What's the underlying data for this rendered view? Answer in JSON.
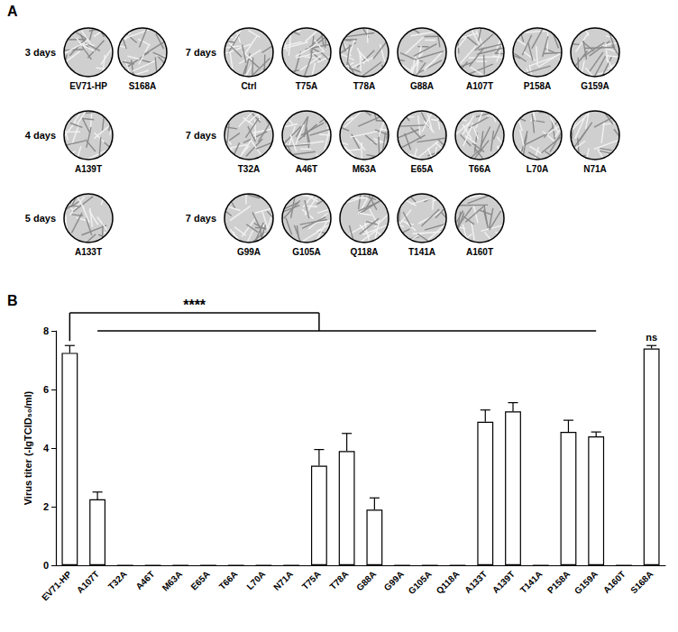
{
  "panel_labels": [
    "A",
    "B"
  ],
  "panel_a": {
    "left": [
      {
        "time": "3 days",
        "wells": [
          "EV71-HP",
          "S168A"
        ]
      },
      {
        "time": "4 days",
        "wells": [
          "A139T"
        ]
      },
      {
        "time": "5 days",
        "wells": [
          "A133T"
        ]
      }
    ],
    "right": [
      {
        "time": "7 days",
        "wells": [
          "Ctrl",
          "T75A",
          "T78A",
          "G88A",
          "A107T",
          "P158A",
          "G159A"
        ]
      },
      {
        "time": "7 days",
        "wells": [
          "T32A",
          "A46T",
          "M63A",
          "E65A",
          "T66A",
          "L70A",
          "N71A"
        ]
      },
      {
        "time": "7 days",
        "wells": [
          "G99A",
          "G105A",
          "Q118A",
          "T141A",
          "A160T"
        ]
      }
    ]
  },
  "chart_data": {
    "type": "bar",
    "y_label": "Virus titer (-lgTCID₅₀/ml)",
    "categories": [
      "EV71-HP",
      "A107T",
      "T32A",
      "A46T",
      "M63A",
      "E65A",
      "T66A",
      "L70A",
      "N71A",
      "T75A",
      "T78A",
      "G88A",
      "G99A",
      "G105A",
      "Q118A",
      "A133T",
      "A139T",
      "T141A",
      "P158A",
      "G159A",
      "A160T",
      "S168A"
    ],
    "values": [
      7.25,
      2.25,
      0,
      0,
      0,
      0,
      0,
      0,
      0,
      3.4,
      3.9,
      1.9,
      0,
      0,
      0,
      4.9,
      5.25,
      0,
      4.55,
      4.4,
      0,
      7.4
    ],
    "errors": [
      0.25,
      0.25,
      0,
      0,
      0,
      0,
      0,
      0,
      0,
      0.55,
      0.6,
      0.4,
      0,
      0,
      0,
      0.4,
      0.3,
      0,
      0.4,
      0.15,
      0,
      0.1
    ],
    "color": "#ffffff",
    "ylim": [
      0,
      8
    ],
    "yticks": [
      0,
      2,
      4,
      6,
      8
    ],
    "annotations": [
      {
        "text": "****",
        "from": "EV71-HP",
        "to": "T75A",
        "span": [
          "A107T",
          "G159A"
        ]
      },
      {
        "text": "ns",
        "at": "S168A"
      }
    ]
  }
}
